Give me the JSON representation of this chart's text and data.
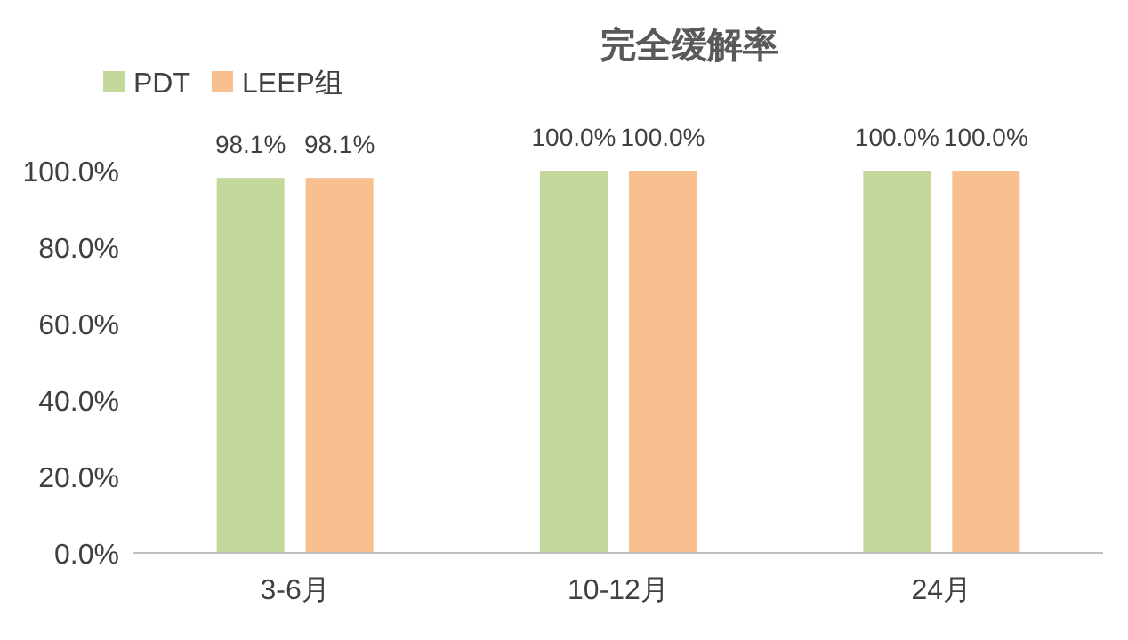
{
  "chart_data": {
    "type": "bar",
    "title": "完全缓解率",
    "categories": [
      "3-6月",
      "10-12月",
      "24月"
    ],
    "series": [
      {
        "name": "PDT",
        "color": "#c5d89b",
        "values": [
          98.1,
          100,
          100
        ],
        "value_labels": [
          "98.1%",
          "100.0%",
          "100.0%"
        ]
      },
      {
        "name": "LEEP组",
        "color": "#f8c08e",
        "values": [
          98.1,
          100,
          100
        ],
        "value_labels": [
          "98.1%",
          "100.0%",
          "100.0%"
        ]
      }
    ],
    "ylim": [
      0,
      100
    ],
    "yticks": [
      {
        "value": 0,
        "label": "0.0%"
      },
      {
        "value": 20,
        "label": "20.0%"
      },
      {
        "value": 40,
        "label": "40.0%"
      },
      {
        "value": 60,
        "label": "60.0%"
      },
      {
        "value": 80,
        "label": "80.0%"
      },
      {
        "value": 100,
        "label": "100.0%"
      }
    ],
    "legend": "top left",
    "grid": false
  }
}
